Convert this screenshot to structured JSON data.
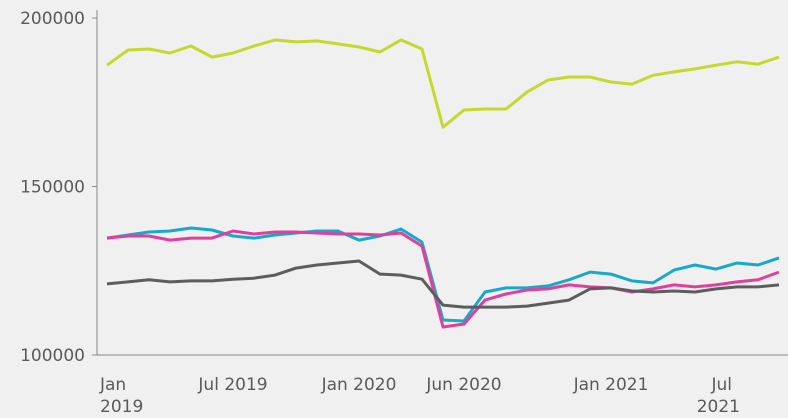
{
  "chart_data": {
    "type": "line",
    "categories": [
      "Jan 2019",
      null,
      null,
      null,
      null,
      null,
      "Jul 2019",
      null,
      null,
      null,
      null,
      null,
      "Jan 2020",
      null,
      null,
      null,
      null,
      "Jun 2020",
      null,
      null,
      null,
      null,
      null,
      null,
      "Jan 2021",
      null,
      null,
      null,
      null,
      null,
      "Jul 2021",
      null,
      null
    ],
    "series": [
      {
        "color": "#c5d82e",
        "values": [
          186000,
          190500,
          190800,
          189600,
          191700,
          188400,
          189600,
          191700,
          193500,
          192900,
          193200,
          192300,
          191400,
          189900,
          193500,
          190800,
          167600,
          172700,
          173000,
          173000,
          178000,
          181600,
          182500,
          182500,
          181000,
          180400,
          183000,
          184000,
          184900,
          186000,
          187000,
          186300,
          188400
        ]
      },
      {
        "color": "#17a9c9",
        "values": [
          134700,
          135600,
          136500,
          136800,
          137700,
          137100,
          135300,
          134700,
          135600,
          136200,
          136800,
          136800,
          134100,
          135300,
          137400,
          133500,
          110400,
          110100,
          118700,
          119900,
          119900,
          120500,
          122300,
          124600,
          124000,
          122000,
          121400,
          125200,
          126700,
          125500,
          127300,
          126700,
          128800
        ]
      },
      {
        "color": "#e0409a",
        "values": [
          134700,
          135300,
          135300,
          134100,
          134700,
          134700,
          136800,
          135900,
          136500,
          136500,
          136200,
          135900,
          135900,
          135600,
          136200,
          132300,
          108300,
          109200,
          116300,
          118100,
          119300,
          119600,
          120800,
          120200,
          119900,
          118700,
          119600,
          120800,
          120200,
          120800,
          121700,
          122300,
          124600
        ]
      },
      {
        "color": "#5d5d5d",
        "values": [
          121100,
          121700,
          122300,
          121700,
          122000,
          122000,
          122500,
          122800,
          123700,
          125800,
          126700,
          127300,
          127900,
          124000,
          123700,
          122500,
          114800,
          114200,
          114200,
          114200,
          114500,
          115400,
          116300,
          119600,
          119900,
          119000,
          118700,
          119000,
          118700,
          119600,
          120200,
          120200,
          120800
        ]
      }
    ],
    "ylim": [
      100000,
      200000
    ],
    "yticks": [
      100000,
      150000,
      200000
    ],
    "grid": false
  }
}
